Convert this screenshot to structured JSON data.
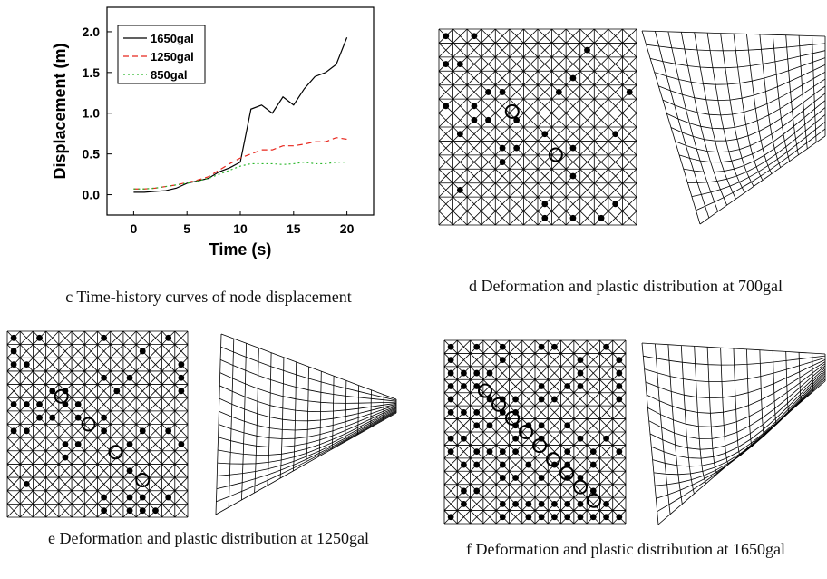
{
  "chart_data": {
    "type": "line",
    "x": [
      0,
      1,
      2,
      3,
      4,
      5,
      6,
      7,
      8,
      9,
      10,
      11,
      12,
      13,
      14,
      15,
      16,
      17,
      18,
      19,
      20
    ],
    "series": [
      {
        "name": "1650gal",
        "color": "#000000",
        "dash": "solid",
        "values": [
          0.03,
          0.03,
          0.04,
          0.05,
          0.08,
          0.14,
          0.17,
          0.2,
          0.28,
          0.33,
          0.4,
          1.05,
          1.1,
          1.0,
          1.2,
          1.1,
          1.3,
          1.45,
          1.5,
          1.6,
          1.93
        ]
      },
      {
        "name": "1250gal",
        "color": "#e8261c",
        "dash": "dashed",
        "values": [
          0.07,
          0.07,
          0.08,
          0.1,
          0.12,
          0.15,
          0.18,
          0.22,
          0.3,
          0.38,
          0.45,
          0.5,
          0.55,
          0.55,
          0.6,
          0.6,
          0.62,
          0.65,
          0.65,
          0.7,
          0.68
        ]
      },
      {
        "name": "850gal",
        "color": "#2db82d",
        "dash": "dotted",
        "values": [
          0.07,
          0.07,
          0.08,
          0.1,
          0.12,
          0.14,
          0.17,
          0.2,
          0.25,
          0.3,
          0.35,
          0.38,
          0.38,
          0.38,
          0.37,
          0.38,
          0.4,
          0.38,
          0.38,
          0.4,
          0.4
        ]
      }
    ],
    "x_label": "Time (s)",
    "y_label": "Displacement (m)",
    "xlim": [
      -2.5,
      22.5
    ],
    "xticks": [
      0,
      5,
      10,
      15,
      20
    ],
    "ylim": [
      -0.25,
      2.3
    ],
    "yticks": [
      {
        "value": 0,
        "label": "0.0"
      },
      0.5,
      {
        "value": 1,
        "label": "1.0"
      },
      1.5,
      {
        "value": 2,
        "label": "2.0"
      }
    ],
    "legend": "upper left",
    "grid": false
  },
  "panels": [
    {
      "caption": "c  Time-history curves of node displacement"
    },
    {
      "caption": "d Deformation and plastic distribution at 700gal"
    },
    {
      "caption": "e Deformation and plastic distribution at 1250gal"
    },
    {
      "caption": "f Deformation and plastic distribution at 1650gal"
    }
  ]
}
